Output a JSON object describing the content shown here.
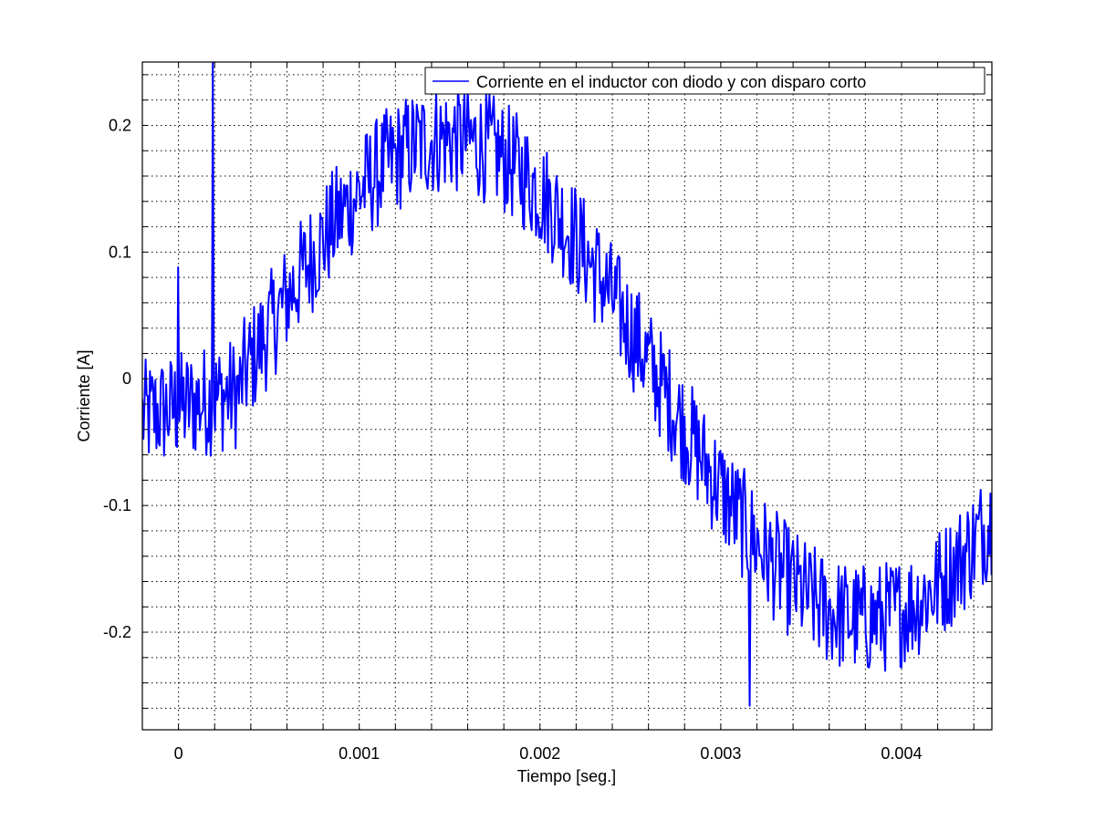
{
  "chart_data": {
    "type": "line",
    "xlabel": "Tiempo [seg.]",
    "ylabel": "Corriente [A]",
    "xlim": [
      -0.0002,
      0.0045
    ],
    "ylim": [
      -0.277,
      0.25
    ],
    "grid": true,
    "grid_style": "dotted",
    "x_ticks": [
      0,
      0.001,
      0.002,
      0.003,
      0.004
    ],
    "x_tick_labels": [
      "0",
      "0.001",
      "0.002",
      "0.003",
      "0.004"
    ],
    "x_minor_step": 0.0002,
    "y_ticks": [
      -0.2,
      -0.1,
      0,
      0.1,
      0.2
    ],
    "y_tick_labels": [
      "-0.2",
      "-0.1",
      "0",
      "0.1",
      "0.2"
    ],
    "y_minor_step": 0.02,
    "legend_position": "top-right",
    "series": [
      {
        "name": "Corriente en el inductor con diodo y con disparo corto",
        "color": "#0000ff",
        "base_amplitude": 0.19,
        "base_period": 0.0046,
        "base_phase_x": 0.00035,
        "noise_amplitude": 0.045,
        "sample_step": 6e-06,
        "peak_max": 0.25,
        "trough_min": -0.258
      }
    ]
  }
}
